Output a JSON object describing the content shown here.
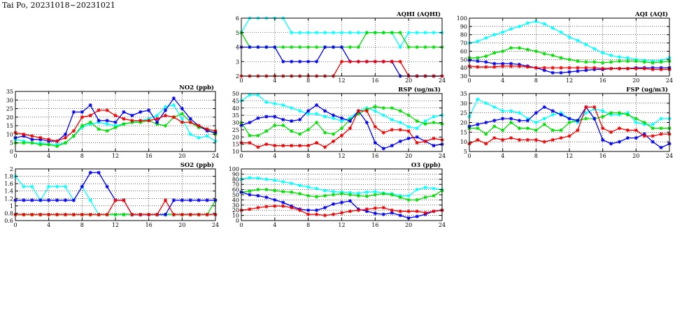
{
  "page_title": "Tai Po, 20231018~20231021",
  "series_colors": {
    "cyan": "#00ffff",
    "green": "#00dd00",
    "blue": "#0000ee",
    "red": "#ee0000"
  },
  "chart_data": [
    {
      "id": "no2",
      "type": "line",
      "title": "NO2 (ppb)",
      "xlim": [
        0,
        24
      ],
      "xticks": [
        0,
        4,
        8,
        12,
        16,
        20,
        24
      ],
      "ylim": [
        0,
        35
      ],
      "yticks": [
        0,
        5,
        10,
        15,
        20,
        25,
        30,
        35
      ],
      "grid": true,
      "x": [
        0,
        1,
        2,
        3,
        4,
        5,
        6,
        7,
        8,
        9,
        10,
        11,
        12,
        13,
        14,
        15,
        16,
        17,
        18,
        19,
        20,
        21,
        22,
        23,
        24
      ],
      "series": [
        {
          "color": "cyan",
          "values": [
            7,
            6,
            5,
            5,
            4,
            4,
            5,
            9,
            14,
            16,
            17,
            16,
            15,
            16,
            17,
            18,
            19,
            21,
            26,
            27,
            19,
            10,
            8,
            9,
            6
          ]
        },
        {
          "color": "green",
          "values": [
            5,
            5,
            5,
            4,
            4,
            3,
            5,
            9,
            15,
            17,
            13,
            12,
            14,
            16,
            17,
            17,
            18,
            16,
            15,
            20,
            22,
            17,
            14,
            13,
            10
          ]
        },
        {
          "color": "blue",
          "values": [
            8,
            9,
            7,
            7,
            6,
            6,
            10,
            23,
            23,
            27,
            18,
            18,
            17,
            23,
            21,
            23,
            24,
            17,
            24,
            31,
            25,
            19,
            15,
            12,
            11
          ]
        },
        {
          "color": "red",
          "values": [
            11,
            10,
            9,
            8,
            7,
            6,
            8,
            12,
            20,
            21,
            24,
            24,
            21,
            19,
            18,
            18,
            18,
            19,
            21,
            20,
            17,
            17,
            15,
            13,
            12
          ]
        }
      ]
    },
    {
      "id": "so2",
      "type": "line",
      "title": "SO2 (ppb)",
      "xlim": [
        0,
        24
      ],
      "xticks": [
        0,
        4,
        8,
        12,
        16,
        20,
        24
      ],
      "ylim": [
        0.6,
        2.0
      ],
      "yticks": [
        0.6,
        0.8,
        1.0,
        1.2,
        1.4,
        1.6,
        1.8,
        2.0
      ],
      "grid": true,
      "x": [
        0,
        1,
        2,
        3,
        4,
        5,
        6,
        7,
        8,
        9,
        10,
        11,
        12,
        13,
        14,
        15,
        16,
        17,
        18,
        19,
        20,
        21,
        22,
        23,
        24
      ],
      "series": [
        {
          "color": "cyan",
          "values": [
            1.8,
            1.52,
            1.52,
            1.15,
            1.52,
            1.52,
            1.52,
            1.15,
            1.52,
            1.15,
            0.76,
            0.76,
            0.76,
            0.76,
            0.76,
            0.76,
            0.76,
            0.76,
            0.76,
            0.76,
            0.76,
            0.76,
            0.76,
            0.76,
            0.76
          ]
        },
        {
          "color": "green",
          "values": [
            0.76,
            0.76,
            0.76,
            0.76,
            0.76,
            0.76,
            0.76,
            0.76,
            0.76,
            0.76,
            0.76,
            0.76,
            0.76,
            0.76,
            0.76,
            0.76,
            0.76,
            0.76,
            0.76,
            0.76,
            0.76,
            0.76,
            0.76,
            0.76,
            1.15
          ]
        },
        {
          "color": "blue",
          "values": [
            1.15,
            1.15,
            1.15,
            1.15,
            1.15,
            1.15,
            1.15,
            1.15,
            1.52,
            1.9,
            1.9,
            1.52,
            1.15,
            1.15,
            0.76,
            0.76,
            0.76,
            0.76,
            0.76,
            1.15,
            1.15,
            1.15,
            1.15,
            1.15,
            1.15
          ]
        },
        {
          "color": "red",
          "values": [
            0.76,
            0.76,
            0.76,
            0.76,
            0.76,
            0.76,
            0.76,
            0.76,
            0.76,
            0.76,
            0.76,
            0.76,
            1.15,
            1.15,
            0.76,
            0.76,
            0.76,
            0.76,
            1.15,
            0.76,
            0.76,
            0.76,
            0.76,
            0.76,
            0.76
          ]
        }
      ]
    },
    {
      "id": "aqhi",
      "type": "line",
      "title": "AQHI (AQHI)",
      "xlim": [
        0,
        24
      ],
      "xticks": [
        0,
        4,
        8,
        12,
        16,
        20,
        24
      ],
      "ylim": [
        2,
        6
      ],
      "yticks": [
        2,
        3,
        4,
        5,
        6
      ],
      "grid": true,
      "x": [
        0,
        1,
        2,
        3,
        4,
        5,
        6,
        7,
        8,
        9,
        10,
        11,
        12,
        13,
        14,
        15,
        16,
        17,
        18,
        19,
        20,
        21,
        22,
        23,
        24
      ],
      "series": [
        {
          "color": "cyan",
          "values": [
            5,
            6,
            6,
            6,
            6,
            6,
            5,
            5,
            5,
            5,
            5,
            5,
            5,
            5,
            5,
            5,
            5,
            5,
            5,
            4,
            5,
            5,
            5,
            5,
            5
          ]
        },
        {
          "color": "green",
          "values": [
            5,
            4,
            4,
            4,
            4,
            4,
            4,
            4,
            4,
            4,
            4,
            4,
            4,
            4,
            4,
            5,
            5,
            5,
            5,
            5,
            4,
            4,
            4,
            4,
            4
          ]
        },
        {
          "color": "blue",
          "values": [
            4,
            4,
            4,
            4,
            4,
            3,
            3,
            3,
            3,
            3,
            4,
            4,
            4,
            3,
            3,
            3,
            3,
            3,
            3,
            2,
            2,
            2,
            2,
            2,
            2
          ]
        },
        {
          "color": "red",
          "values": [
            2,
            2,
            2,
            2,
            2,
            2,
            2,
            2,
            2,
            2,
            2,
            2,
            3,
            3,
            3,
            3,
            3,
            3,
            3,
            3,
            2,
            2,
            2,
            2,
            2
          ]
        }
      ]
    },
    {
      "id": "rsp",
      "type": "line",
      "title": "RSP (ug/m3)",
      "xlim": [
        0,
        24
      ],
      "xticks": [
        0,
        4,
        8,
        12,
        16,
        20,
        24
      ],
      "ylim": [
        10,
        50
      ],
      "yticks": [
        10,
        15,
        20,
        25,
        30,
        35,
        40,
        45,
        50
      ],
      "grid": true,
      "x": [
        0,
        1,
        2,
        3,
        4,
        5,
        6,
        7,
        8,
        9,
        10,
        11,
        12,
        13,
        14,
        15,
        16,
        17,
        18,
        19,
        20,
        21,
        22,
        23,
        24
      ],
      "series": [
        {
          "color": "cyan",
          "values": [
            45,
            49,
            49,
            44,
            43,
            42,
            40,
            38,
            36,
            36,
            34,
            33,
            31,
            33,
            38,
            40,
            38,
            35,
            32,
            30,
            27,
            26,
            31,
            34,
            35
          ]
        },
        {
          "color": "green",
          "values": [
            30,
            21,
            21,
            24,
            28,
            28,
            24,
            22,
            25,
            30,
            23,
            22,
            26,
            32,
            36,
            39,
            41,
            40,
            40,
            38,
            35,
            31,
            29,
            30,
            29
          ]
        },
        {
          "color": "blue",
          "values": [
            28,
            30,
            33,
            34,
            34,
            32,
            31,
            32,
            38,
            42,
            38,
            35,
            33,
            31,
            38,
            30,
            16,
            12,
            14,
            17,
            19,
            20,
            17,
            14,
            15
          ]
        },
        {
          "color": "red",
          "values": [
            16,
            16,
            13,
            15,
            14,
            14,
            14,
            14,
            14,
            16,
            13,
            17,
            21,
            26,
            38,
            38,
            27,
            23,
            25,
            25,
            24,
            16,
            17,
            19,
            18
          ]
        }
      ]
    },
    {
      "id": "o3",
      "type": "line",
      "title": "O3 (ppb)",
      "xlim": [
        0,
        24
      ],
      "xticks": [
        0,
        4,
        8,
        12,
        16,
        20,
        24
      ],
      "ylim": [
        0,
        100
      ],
      "yticks": [
        0,
        10,
        20,
        30,
        40,
        50,
        60,
        70,
        80,
        90,
        100
      ],
      "grid": true,
      "x": [
        0,
        1,
        2,
        3,
        4,
        5,
        6,
        7,
        8,
        9,
        10,
        11,
        12,
        13,
        14,
        15,
        16,
        17,
        18,
        19,
        20,
        21,
        22,
        23,
        24
      ],
      "series": [
        {
          "color": "cyan",
          "values": [
            80,
            83,
            82,
            80,
            78,
            75,
            72,
            68,
            65,
            62,
            58,
            56,
            55,
            54,
            53,
            55,
            56,
            53,
            52,
            48,
            48,
            60,
            64,
            62,
            60
          ]
        },
        {
          "color": "green",
          "values": [
            55,
            57,
            60,
            60,
            58,
            56,
            55,
            52,
            48,
            46,
            48,
            50,
            52,
            50,
            48,
            47,
            50,
            52,
            50,
            45,
            40,
            40,
            45,
            48,
            58
          ]
        },
        {
          "color": "blue",
          "values": [
            55,
            50,
            48,
            45,
            40,
            35,
            28,
            22,
            20,
            20,
            25,
            32,
            35,
            38,
            22,
            18,
            14,
            12,
            15,
            10,
            5,
            8,
            12,
            18,
            20
          ]
        },
        {
          "color": "red",
          "values": [
            20,
            22,
            25,
            27,
            28,
            28,
            25,
            20,
            12,
            12,
            10,
            12,
            15,
            18,
            20,
            22,
            24,
            25,
            20,
            18,
            18,
            18,
            15,
            18,
            20
          ]
        }
      ]
    },
    {
      "id": "aqi",
      "type": "line",
      "title": "AQI (AQI)",
      "xlim": [
        0,
        24
      ],
      "xticks": [
        0,
        4,
        8,
        12,
        16,
        20,
        24
      ],
      "ylim": [
        30,
        100
      ],
      "yticks": [
        30,
        40,
        50,
        60,
        70,
        80,
        90,
        100
      ],
      "grid": true,
      "x": [
        0,
        1,
        2,
        3,
        4,
        5,
        6,
        7,
        8,
        9,
        10,
        11,
        12,
        13,
        14,
        15,
        16,
        17,
        18,
        19,
        20,
        21,
        22,
        23,
        24
      ],
      "series": [
        {
          "color": "cyan",
          "values": [
            70,
            72,
            76,
            80,
            83,
            87,
            90,
            94,
            96,
            93,
            88,
            83,
            77,
            73,
            68,
            63,
            58,
            55,
            53,
            52,
            50,
            49,
            48,
            49,
            52
          ]
        },
        {
          "color": "green",
          "values": [
            52,
            52,
            54,
            58,
            60,
            64,
            64,
            62,
            60,
            57,
            55,
            52,
            50,
            48,
            47,
            47,
            46,
            47,
            48,
            48,
            48,
            47,
            46,
            47,
            48
          ]
        },
        {
          "color": "blue",
          "values": [
            49,
            48,
            47,
            45,
            45,
            45,
            44,
            42,
            40,
            37,
            34,
            34,
            35,
            36,
            37,
            38,
            38,
            39,
            39,
            39,
            40,
            40,
            40,
            40,
            40
          ]
        },
        {
          "color": "red",
          "values": [
            42,
            41,
            41,
            41,
            42,
            42,
            42,
            41,
            40,
            40,
            40,
            40,
            40,
            40,
            40,
            40,
            39,
            39,
            39,
            39,
            39,
            39,
            38,
            38,
            38
          ]
        }
      ]
    },
    {
      "id": "fsp",
      "type": "line",
      "title": "FSP (ug/m3)",
      "xlim": [
        0,
        24
      ],
      "xticks": [
        0,
        4,
        8,
        12,
        16,
        20,
        24
      ],
      "ylim": [
        5,
        35
      ],
      "yticks": [
        5,
        10,
        15,
        20,
        25,
        30,
        35
      ],
      "grid": true,
      "x": [
        0,
        1,
        2,
        3,
        4,
        5,
        6,
        7,
        8,
        9,
        10,
        11,
        12,
        13,
        14,
        15,
        16,
        17,
        18,
        19,
        20,
        21,
        22,
        23,
        24
      ],
      "series": [
        {
          "color": "cyan",
          "values": [
            23,
            32,
            30,
            28,
            26,
            26,
            25,
            22,
            20,
            22,
            24,
            25,
            22,
            20,
            25,
            27,
            26,
            24,
            24,
            25,
            20,
            19,
            19,
            22,
            22
          ]
        },
        {
          "color": "green",
          "values": [
            17,
            17,
            14,
            18,
            16,
            20,
            17,
            17,
            16,
            19,
            16,
            16,
            20,
            21,
            22,
            22,
            23,
            25,
            25,
            24,
            22,
            20,
            17,
            17,
            17
          ]
        },
        {
          "color": "blue",
          "values": [
            18,
            19,
            20,
            21,
            22,
            22,
            21,
            21,
            25,
            28,
            26,
            24,
            22,
            21,
            28,
            22,
            11,
            9,
            10,
            12,
            12,
            14,
            10,
            7,
            9
          ]
        },
        {
          "color": "red",
          "values": [
            9,
            11,
            9,
            12,
            11,
            12,
            11,
            11,
            11,
            10,
            11,
            12,
            13,
            16,
            28,
            28,
            17,
            15,
            17,
            16,
            16,
            13,
            13,
            14,
            14
          ]
        }
      ]
    }
  ]
}
